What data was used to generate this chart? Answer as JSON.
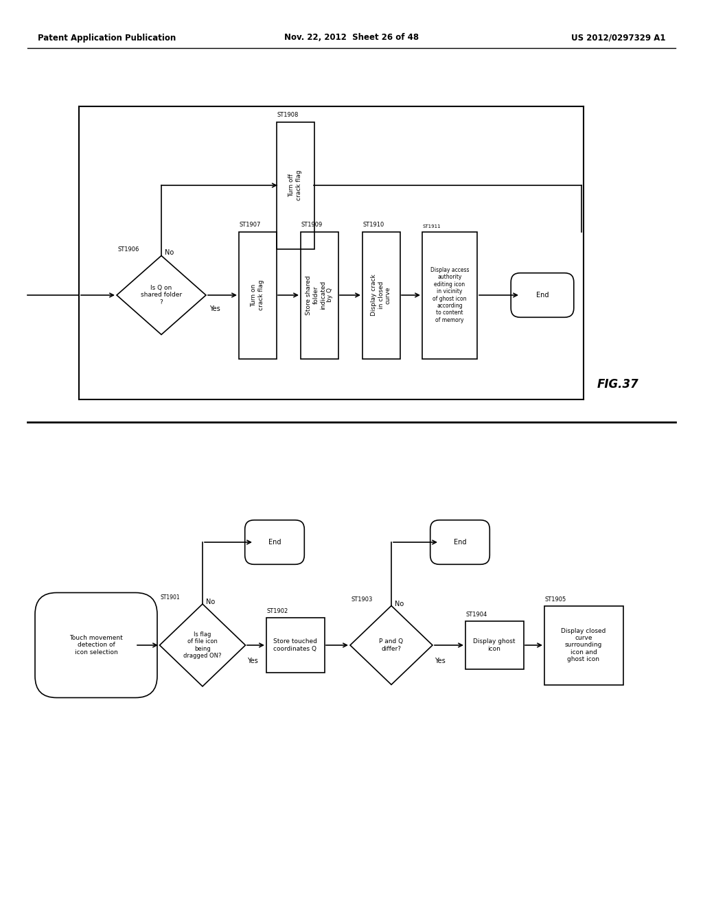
{
  "title_left": "Patent Application Publication",
  "title_mid": "Nov. 22, 2012  Sheet 26 of 48",
  "title_right": "US 2012/0297329 A1",
  "fig_label": "FIG.37",
  "bg_color": "#ffffff",
  "line_color": "#000000",
  "font_size_header": 8.5,
  "font_size_node": 6.5,
  "font_size_label": 6.5,
  "font_size_figlabel": 12
}
